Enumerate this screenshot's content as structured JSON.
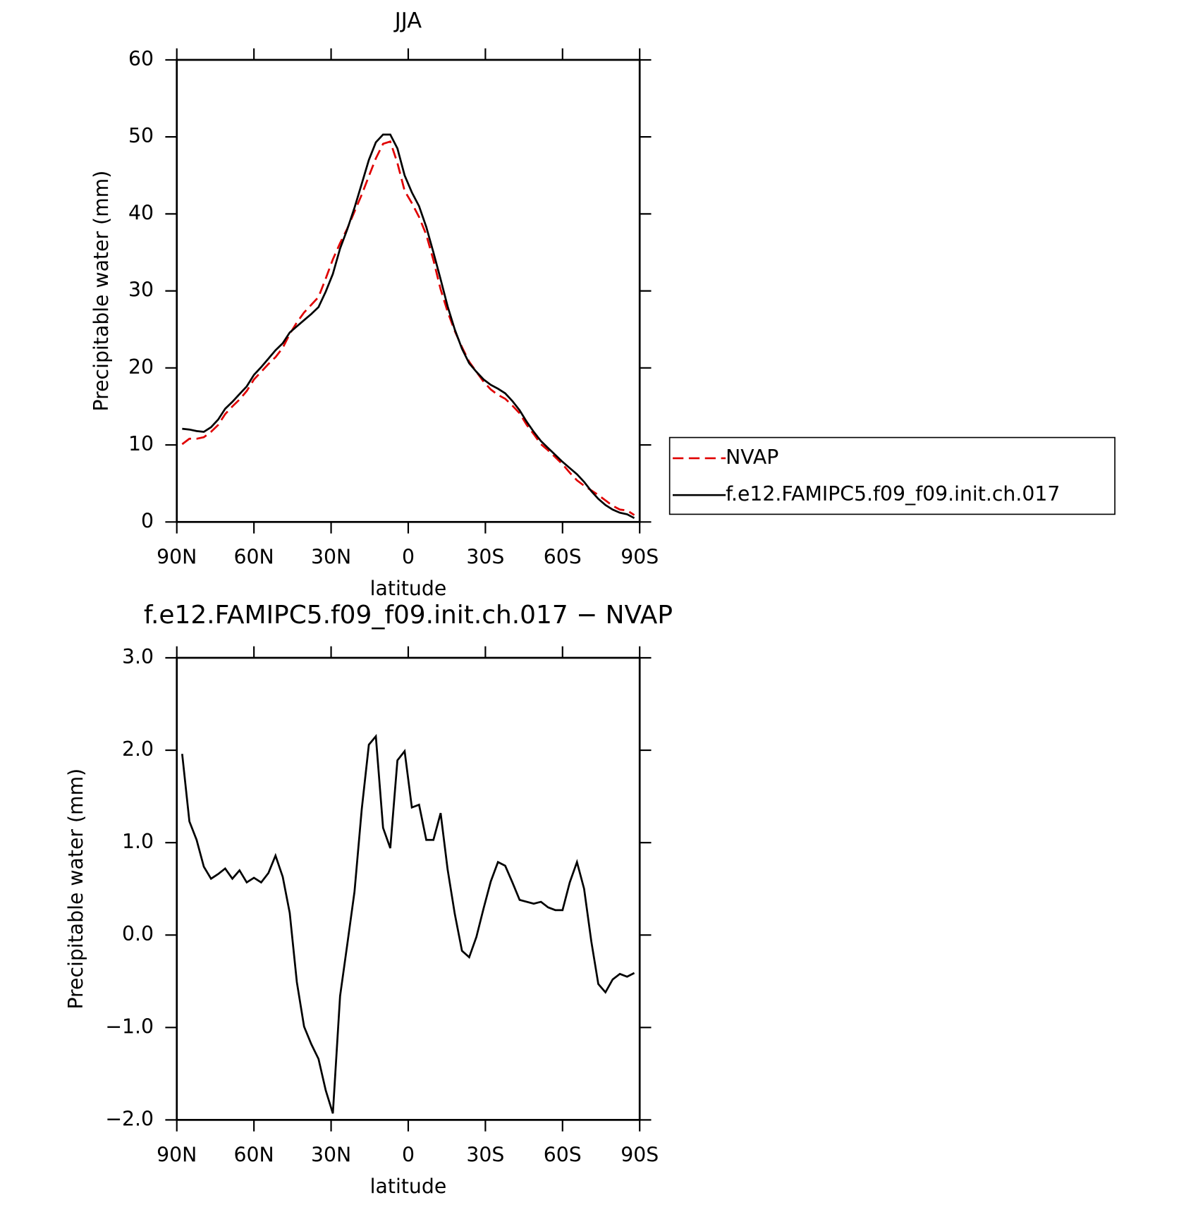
{
  "chart_data": [
    {
      "type": "line",
      "title": "JJA",
      "xlabel": "latitude",
      "ylabel": "Precipitable water (mm)",
      "x": [
        87.9,
        85.1,
        82.3,
        79.5,
        76.7,
        73.9,
        71.2,
        68.4,
        65.6,
        62.8,
        60.0,
        57.2,
        54.4,
        51.6,
        48.8,
        46.1,
        43.3,
        40.5,
        37.7,
        34.9,
        32.1,
        29.3,
        26.5,
        23.7,
        20.9,
        18.1,
        15.3,
        12.6,
        9.8,
        7.0,
        4.2,
        1.4,
        -1.4,
        -4.2,
        -7.0,
        -9.8,
        -12.6,
        -15.3,
        -18.1,
        -20.9,
        -23.7,
        -26.5,
        -29.3,
        -32.1,
        -34.9,
        -37.7,
        -40.5,
        -43.3,
        -46.1,
        -48.8,
        -51.6,
        -54.4,
        -57.2,
        -60.0,
        -62.8,
        -65.6,
        -68.4,
        -71.2,
        -73.9,
        -76.7,
        -79.5,
        -82.3,
        -85.1,
        -87.9
      ],
      "series": [
        {
          "name": "NVAP",
          "color": "#e00000",
          "dashed": true,
          "values": [
            10.1,
            10.8,
            10.8,
            11.0,
            11.7,
            12.6,
            14.0,
            15.0,
            15.9,
            17.0,
            18.5,
            19.5,
            20.5,
            21.4,
            22.6,
            24.4,
            25.9,
            27.2,
            28.2,
            29.2,
            31.6,
            34.1,
            36.2,
            38.1,
            40.3,
            42.5,
            44.9,
            47.2,
            49.1,
            49.4,
            46.6,
            43.0,
            41.4,
            39.6,
            37.3,
            34.0,
            30.2,
            27.3,
            24.8,
            22.7,
            20.8,
            19.5,
            18.2,
            17.2,
            16.5,
            16.0,
            15.1,
            14.1,
            12.6,
            11.4,
            10.1,
            9.3,
            8.4,
            7.5,
            6.4,
            5.4,
            4.7,
            4.1,
            3.5,
            2.8,
            2.1,
            1.6,
            1.5,
            0.9
          ]
        },
        {
          "name": "f.e12.FAMIPC5.f09_f09.init.ch.017",
          "color": "#000000",
          "dashed": false,
          "values": [
            12.1,
            12.0,
            11.8,
            11.7,
            12.3,
            13.3,
            14.7,
            15.6,
            16.6,
            17.6,
            19.1,
            20.1,
            21.2,
            22.3,
            23.2,
            24.6,
            25.4,
            26.2,
            27.0,
            27.9,
            29.9,
            32.2,
            35.5,
            38.0,
            40.8,
            43.9,
            47.0,
            49.3,
            50.3,
            50.3,
            48.5,
            45.0,
            42.8,
            41.0,
            38.3,
            35.0,
            31.5,
            28.0,
            25.0,
            22.5,
            20.6,
            19.5,
            18.5,
            17.8,
            17.3,
            16.7,
            15.7,
            14.5,
            13.0,
            11.7,
            10.5,
            9.6,
            8.7,
            7.8,
            7.0,
            6.2,
            5.2,
            4.0,
            3.0,
            2.2,
            1.6,
            1.2,
            1.0,
            0.5
          ]
        }
      ],
      "xlim": [
        90,
        -90
      ],
      "xticks": [
        {
          "value": 90,
          "label": "90N"
        },
        {
          "value": 60,
          "label": "60N"
        },
        {
          "value": 30,
          "label": "30N"
        },
        0,
        {
          "value": -30,
          "label": "30S"
        },
        {
          "value": -60,
          "label": "60S"
        },
        {
          "value": -90,
          "label": "90S"
        }
      ],
      "ylim": [
        0,
        60
      ],
      "yticks": [
        0,
        10,
        20,
        30,
        40,
        50,
        60
      ],
      "legend": "right"
    },
    {
      "type": "line",
      "title": "f.e12.FAMIPC5.f09_f09.init.ch.017 − NVAP",
      "xlabel": "latitude",
      "ylabel": "Precipitable water (mm)",
      "x": [
        87.9,
        85.1,
        82.3,
        79.5,
        76.7,
        73.9,
        71.2,
        68.4,
        65.6,
        62.8,
        60.0,
        57.2,
        54.4,
        51.6,
        48.8,
        46.1,
        43.3,
        40.5,
        37.7,
        34.9,
        32.1,
        29.3,
        26.5,
        23.7,
        20.9,
        18.1,
        15.3,
        12.6,
        9.8,
        7.0,
        4.2,
        1.4,
        -1.4,
        -4.2,
        -7.0,
        -9.8,
        -12.6,
        -15.3,
        -18.1,
        -20.9,
        -23.7,
        -26.5,
        -29.3,
        -32.1,
        -34.9,
        -37.7,
        -40.5,
        -43.3,
        -46.1,
        -48.8,
        -51.6,
        -54.4,
        -57.2,
        -60.0,
        -62.8,
        -65.6,
        -68.4,
        -71.2,
        -73.9,
        -76.7,
        -79.5,
        -82.3,
        -85.1,
        -87.9
      ],
      "series": [
        {
          "color": "#000000",
          "dashed": false,
          "values": [
            1.96,
            1.23,
            1.03,
            0.74,
            0.61,
            0.66,
            0.72,
            0.61,
            0.7,
            0.57,
            0.62,
            0.57,
            0.67,
            0.86,
            0.63,
            0.24,
            -0.51,
            -0.99,
            -1.18,
            -1.34,
            -1.68,
            -1.93,
            -0.66,
            -0.1,
            0.47,
            1.36,
            2.06,
            2.15,
            1.16,
            0.94,
            1.89,
            1.99,
            1.38,
            1.41,
            1.03,
            1.03,
            1.32,
            0.71,
            0.23,
            -0.17,
            -0.24,
            -0.02,
            0.29,
            0.58,
            0.79,
            0.75,
            0.57,
            0.38,
            0.36,
            0.34,
            0.36,
            0.3,
            0.27,
            0.27,
            0.57,
            0.79,
            0.5,
            -0.07,
            -0.53,
            -0.62,
            -0.48,
            -0.42,
            -0.45,
            -0.41
          ]
        }
      ],
      "xlim": [
        90,
        -90
      ],
      "xticks": [
        {
          "value": 90,
          "label": "90N"
        },
        {
          "value": 60,
          "label": "60N"
        },
        {
          "value": 30,
          "label": "30N"
        },
        0,
        {
          "value": -30,
          "label": "30S"
        },
        {
          "value": -60,
          "label": "60S"
        },
        {
          "value": -90,
          "label": "90S"
        }
      ],
      "ylim": [
        -2,
        3
      ],
      "yticks": [
        {
          "value": -2,
          "label": "−2.0"
        },
        {
          "value": -1,
          "label": "−1.0"
        },
        {
          "value": 0,
          "label": "0.0"
        },
        {
          "value": 1,
          "label": "1.0"
        },
        {
          "value": 2,
          "label": "2.0"
        },
        {
          "value": 3,
          "label": "3.0"
        }
      ]
    }
  ]
}
